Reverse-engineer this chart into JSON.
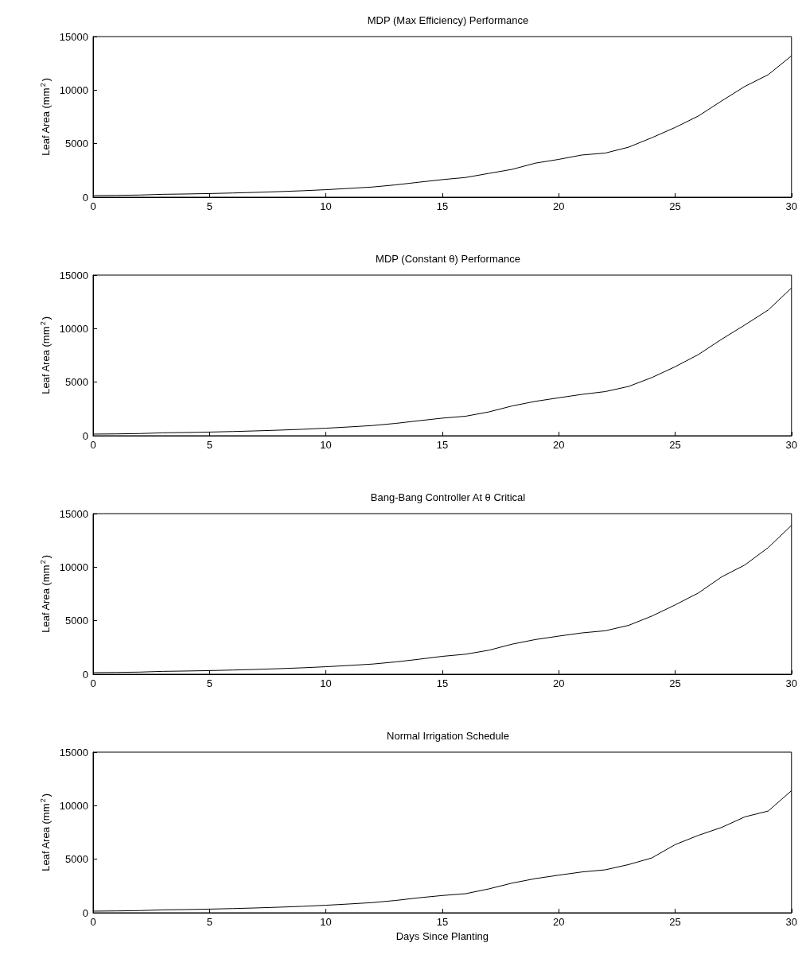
{
  "chart_data": [
    {
      "type": "line",
      "title": "MDP (Max Efficiency) Performance",
      "ylabel": "Leaf Area (mm$^{2}$)",
      "color": "#000000",
      "grid": false,
      "marker": "none",
      "line_style": "solid",
      "xlim": [
        0,
        30
      ],
      "xticks": [
        0,
        5,
        10,
        15,
        20,
        25,
        30
      ],
      "ylim": [
        0,
        15000
      ],
      "yticks": [
        0,
        5000,
        10000,
        15000
      ],
      "x": [
        0,
        1,
        2,
        3,
        4,
        5,
        6,
        7,
        8,
        9,
        10,
        11,
        12,
        13,
        14,
        15,
        16,
        17,
        18,
        19,
        20,
        21,
        22,
        23,
        24,
        25,
        26,
        27,
        28,
        29,
        30
      ],
      "values": [
        150,
        170,
        200,
        270,
        300,
        340,
        390,
        450,
        520,
        600,
        700,
        820,
        950,
        1150,
        1400,
        1640,
        1840,
        2220,
        2600,
        3180,
        3530,
        3940,
        4120,
        4670,
        5550,
        6510,
        7580,
        8990,
        10350,
        11440,
        13200
      ]
    },
    {
      "type": "line",
      "title": "MDP (Constant θ) Performance",
      "ylabel": "Leaf Area (mm$^{2}$)",
      "color": "#000000",
      "grid": false,
      "marker": "none",
      "line_style": "solid",
      "xlim": [
        0,
        30
      ],
      "xticks": [
        0,
        5,
        10,
        15,
        20,
        25,
        30
      ],
      "ylim": [
        0,
        15000
      ],
      "yticks": [
        0,
        5000,
        10000,
        15000
      ],
      "x": [
        0,
        1,
        2,
        3,
        4,
        5,
        6,
        7,
        8,
        9,
        10,
        11,
        12,
        13,
        14,
        15,
        16,
        17,
        18,
        19,
        20,
        21,
        22,
        23,
        24,
        25,
        26,
        27,
        28,
        29,
        30
      ],
      "values": [
        150,
        170,
        200,
        270,
        300,
        340,
        390,
        450,
        520,
        600,
        700,
        820,
        950,
        1150,
        1400,
        1640,
        1820,
        2220,
        2780,
        3210,
        3540,
        3860,
        4120,
        4600,
        5430,
        6440,
        7580,
        9010,
        10350,
        11740,
        13800
      ]
    },
    {
      "type": "line",
      "title": "Bang-Bang Controller At θ Critical",
      "ylabel": "Leaf Area (mm$^{2}$)",
      "color": "#000000",
      "grid": false,
      "marker": "none",
      "line_style": "solid",
      "xlim": [
        0,
        30
      ],
      "xticks": [
        0,
        5,
        10,
        15,
        20,
        25,
        30
      ],
      "ylim": [
        0,
        15000
      ],
      "yticks": [
        0,
        5000,
        10000,
        15000
      ],
      "x": [
        0,
        1,
        2,
        3,
        4,
        5,
        6,
        7,
        8,
        9,
        10,
        11,
        12,
        13,
        14,
        15,
        16,
        17,
        18,
        19,
        20,
        21,
        22,
        23,
        24,
        25,
        26,
        27,
        28,
        29,
        30
      ],
      "values": [
        150,
        170,
        200,
        270,
        300,
        340,
        390,
        450,
        520,
        600,
        700,
        820,
        950,
        1150,
        1400,
        1670,
        1870,
        2240,
        2810,
        3240,
        3560,
        3860,
        4060,
        4560,
        5430,
        6470,
        7590,
        9090,
        10210,
        11830,
        13900
      ]
    },
    {
      "type": "line",
      "title": "Normal Irrigation Schedule",
      "xlabel": "Days Since Planting",
      "ylabel": "Leaf Area (mm$^{2}$)",
      "color": "#000000",
      "grid": false,
      "marker": "none",
      "line_style": "solid",
      "xlim": [
        0,
        30
      ],
      "xticks": [
        0,
        5,
        10,
        15,
        20,
        25,
        30
      ],
      "ylim": [
        0,
        15000
      ],
      "yticks": [
        0,
        5000,
        10000,
        15000
      ],
      "x": [
        0,
        1,
        2,
        3,
        4,
        5,
        6,
        7,
        8,
        9,
        10,
        11,
        12,
        13,
        14,
        15,
        16,
        17,
        18,
        19,
        20,
        21,
        22,
        23,
        24,
        25,
        26,
        27,
        28,
        29,
        30
      ],
      "values": [
        150,
        170,
        200,
        270,
        300,
        340,
        390,
        450,
        520,
        600,
        700,
        820,
        950,
        1150,
        1400,
        1610,
        1780,
        2230,
        2770,
        3190,
        3510,
        3810,
        4010,
        4500,
        5120,
        6360,
        7230,
        7970,
        8960,
        9500,
        11400
      ]
    }
  ]
}
